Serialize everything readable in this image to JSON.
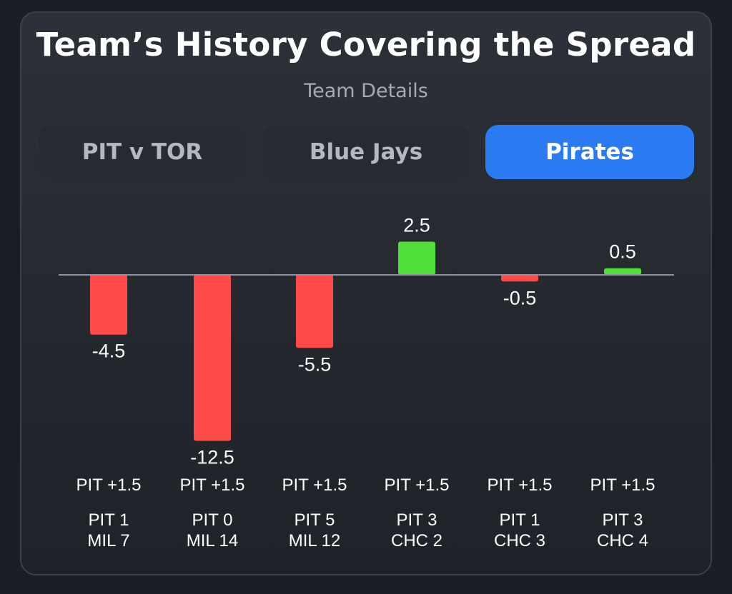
{
  "header": {
    "title": "Team’s History Covering the Spread",
    "subtitle": "Team Details"
  },
  "tabs": [
    {
      "label": "PIT v TOR",
      "active": false
    },
    {
      "label": "Blue Jays",
      "active": false
    },
    {
      "label": "Pirates",
      "active": true
    }
  ],
  "colors": {
    "positive": "#4fe03a",
    "negative": "#ff4a4a",
    "baseline": "#8a93a6",
    "accent": "#2b7cf2"
  },
  "chart_data": {
    "type": "bar",
    "title": "Team’s History Covering the Spread",
    "subtitle": "Team Details",
    "values": [
      -4.5,
      -12.5,
      -5.5,
      2.5,
      -0.5,
      0.5
    ],
    "value_labels": [
      "-4.5",
      "-12.5",
      "-5.5",
      "2.5",
      "-0.5",
      "0.5"
    ],
    "spreads": [
      "PIT +1.5",
      "PIT +1.5",
      "PIT +1.5",
      "PIT +1.5",
      "PIT +1.5",
      "PIT +1.5"
    ],
    "scores": [
      [
        "PIT 1",
        "MIL 7"
      ],
      [
        "PIT 0",
        "MIL 14"
      ],
      [
        "PIT 5",
        "MIL 12"
      ],
      [
        "PIT 3",
        "CHC 2"
      ],
      [
        "PIT 1",
        "CHC 3"
      ],
      [
        "PIT 3",
        "CHC 4"
      ]
    ],
    "ylim": [
      -12.5,
      2.5
    ],
    "grid": false,
    "legend": "none"
  }
}
